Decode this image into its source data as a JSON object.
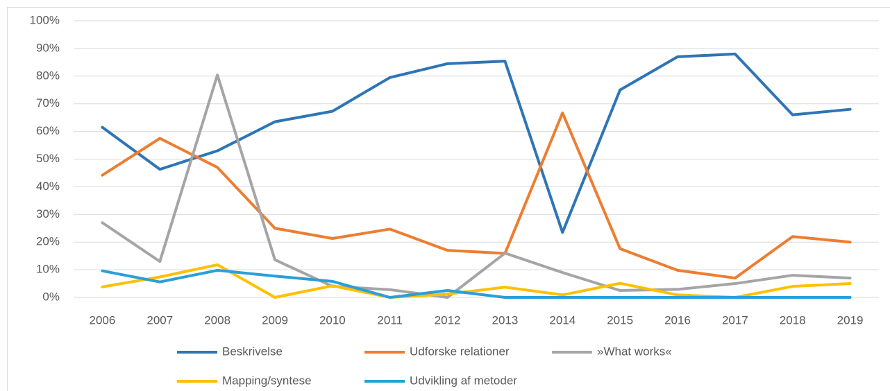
{
  "chart_data": {
    "type": "line",
    "categories": [
      "2006",
      "2007",
      "2008",
      "2009",
      "2010",
      "2011",
      "2012",
      "2013",
      "2014",
      "2015",
      "2016",
      "2017",
      "2018",
      "2019"
    ],
    "series": [
      {
        "name": "Beskrivelse",
        "color": "#2e75b6",
        "values": [
          61.5,
          46.3,
          53,
          63.5,
          67.3,
          79.5,
          84.5,
          85.4,
          23.5,
          75,
          87,
          88,
          66,
          68
        ]
      },
      {
        "name": "Udforske relationer",
        "color": "#ed7d31",
        "values": [
          44.2,
          57.5,
          47,
          25,
          21.3,
          24.7,
          17,
          15.9,
          66.7,
          17.6,
          9.8,
          7,
          22,
          20
        ]
      },
      {
        "name": "»What works«",
        "color": "#a5a5a5",
        "values": [
          27,
          13,
          80.4,
          13.6,
          4,
          2.8,
          0,
          16,
          9,
          2.5,
          2.9,
          5,
          8,
          7
        ]
      },
      {
        "name": "Mapping/syntese",
        "color": "#ffc000",
        "values": [
          3.8,
          7.4,
          11.8,
          0,
          4.2,
          0,
          1.2,
          3.7,
          0.9,
          5.1,
          0.9,
          0,
          4,
          5
        ]
      },
      {
        "name": "Udvikling af metoder",
        "color": "#2a9fd8",
        "values": [
          9.6,
          5.6,
          9.8,
          7.7,
          5.8,
          0,
          2.5,
          0,
          0,
          0,
          0,
          0,
          0,
          0
        ]
      }
    ],
    "ylim": [
      0,
      100
    ],
    "yticks": [
      {
        "value": 0,
        "label": "0%"
      },
      {
        "value": 10,
        "label": "10%"
      },
      {
        "value": 20,
        "label": "20%"
      },
      {
        "value": 30,
        "label": "30%"
      },
      {
        "value": 40,
        "label": "40%"
      },
      {
        "value": 50,
        "label": "50%"
      },
      {
        "value": 60,
        "label": "60%"
      },
      {
        "value": 70,
        "label": "70%"
      },
      {
        "value": 80,
        "label": "80%"
      },
      {
        "value": 90,
        "label": "90%"
      },
      {
        "value": 100,
        "label": "100%"
      }
    ],
    "grid": true,
    "legend": "bottom"
  }
}
